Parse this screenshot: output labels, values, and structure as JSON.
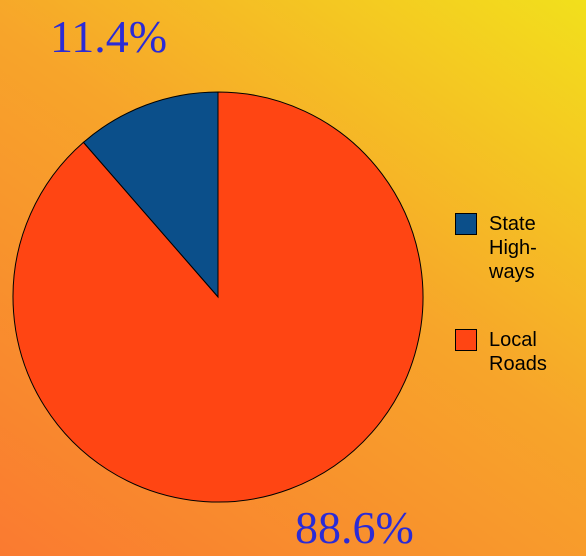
{
  "chart_data": {
    "type": "pie",
    "categories": [
      "State High-ways",
      "Local Roads"
    ],
    "values": [
      11.4,
      88.6
    ],
    "value_labels": [
      "11.4%",
      "88.6%"
    ],
    "colors": [
      "#0b4f8a",
      "#ff4513"
    ]
  }
}
